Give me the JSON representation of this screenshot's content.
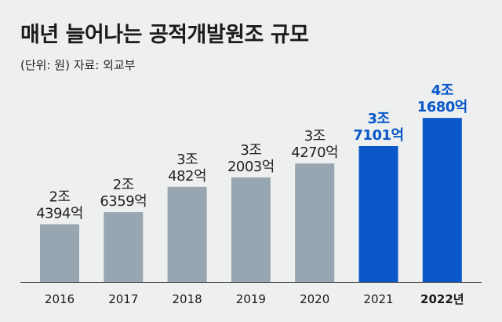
{
  "title": "매년 늘어나는 공적개발원조 규모",
  "subtitle": "(단위: 원) 자료: 외교부",
  "colors": {
    "background": "#eef0f0",
    "bar_past": "#97a6b0",
    "bar_highlight": "#0a57c9",
    "label_past": "#222222",
    "label_highlight": "#0a57c9",
    "axis": "#333333"
  },
  "chart_data": {
    "type": "bar",
    "title": "매년 늘어나는 공적개발원조 규모",
    "unit": "원",
    "source": "자료: 외교부",
    "categories": [
      "2016",
      "2017",
      "2018",
      "2019",
      "2020",
      "2021",
      "2022년"
    ],
    "values": [
      2439400000000,
      2635900000000,
      3048200000000,
      3200300000000,
      3427000000000,
      3710100000000,
      4168000000000
    ],
    "data_labels": [
      [
        "2조",
        "4394억"
      ],
      [
        "2조",
        "6359억"
      ],
      [
        "3조",
        "482억"
      ],
      [
        "3조",
        "2003억"
      ],
      [
        "3조",
        "4270억"
      ],
      [
        "3조",
        "7101억"
      ],
      [
        "4조",
        "1680억"
      ]
    ],
    "highlighted": [
      false,
      false,
      false,
      false,
      false,
      true,
      true
    ],
    "bold_categories": [
      false,
      false,
      false,
      false,
      false,
      false,
      true
    ],
    "ylim": [
      1500000000000,
      4400000000000
    ],
    "grid": false,
    "legend": "none"
  }
}
